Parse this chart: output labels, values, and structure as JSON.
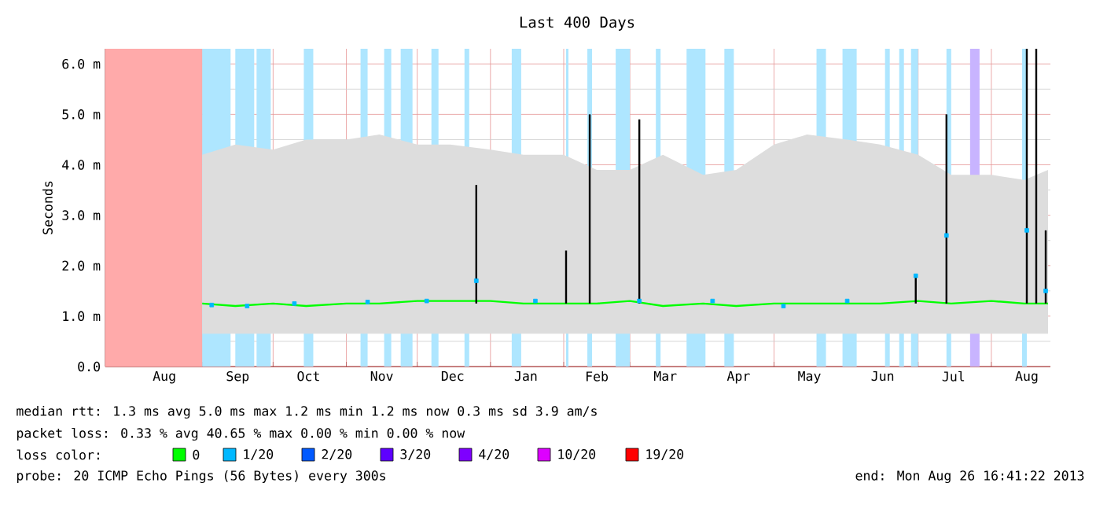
{
  "chart_data": {
    "type": "line",
    "title": "Last 400 Days",
    "ylabel": "Seconds",
    "xlim": [
      "2012-07-22",
      "2013-08-26"
    ],
    "xticks": [
      {
        "value": "2012-08-01",
        "label": null
      },
      {
        "value": "2012-08-16",
        "label": "Aug"
      },
      {
        "value": "2012-09-01",
        "label": null
      },
      {
        "value": "2012-09-16",
        "label": "Sep"
      },
      {
        "value": "2012-10-01",
        "label": null
      },
      {
        "value": "2012-10-16",
        "label": "Oct"
      },
      {
        "value": "2012-11-01",
        "label": null
      },
      {
        "value": "2012-11-16",
        "label": "Nov"
      },
      {
        "value": "2012-12-01",
        "label": null
      },
      {
        "value": "2012-12-16",
        "label": "Dec"
      },
      {
        "value": "2013-01-01",
        "label": null
      },
      {
        "value": "2013-01-16",
        "label": "Jan"
      },
      {
        "value": "2013-02-01",
        "label": null
      },
      {
        "value": "2013-02-15",
        "label": "Feb"
      },
      {
        "value": "2013-03-01",
        "label": null
      },
      {
        "value": "2013-03-16",
        "label": "Mar"
      },
      {
        "value": "2013-04-01",
        "label": null
      },
      {
        "value": "2013-04-16",
        "label": "Apr"
      },
      {
        "value": "2013-05-01",
        "label": null
      },
      {
        "value": "2013-05-16",
        "label": "May"
      },
      {
        "value": "2013-06-01",
        "label": null
      },
      {
        "value": "2013-06-16",
        "label": "Jun"
      },
      {
        "value": "2013-07-01",
        "label": null
      },
      {
        "value": "2013-07-16",
        "label": "Jul"
      },
      {
        "value": "2013-08-01",
        "label": null
      },
      {
        "value": "2013-08-16",
        "label": "Aug"
      }
    ],
    "ylim": [
      0,
      6.3
    ],
    "yticks": [
      {
        "value": 0,
        "label": "0.0"
      },
      {
        "value": 0.5,
        "label": null
      },
      {
        "value": 1,
        "label": "1.0 m"
      },
      {
        "value": 1.5,
        "label": null
      },
      {
        "value": 2,
        "label": "2.0 m"
      },
      {
        "value": 2.5,
        "label": null
      },
      {
        "value": 3,
        "label": "3.0 m"
      },
      {
        "value": 3.5,
        "label": null
      },
      {
        "value": 4,
        "label": "4.0 m"
      },
      {
        "value": 4.5,
        "label": null
      },
      {
        "value": 5,
        "label": "5.0 m"
      },
      {
        "value": 5.5,
        "label": null
      },
      {
        "value": 6,
        "label": "6.0 m"
      }
    ],
    "grid": true,
    "legend": "bottom",
    "legend_title": "loss color:",
    "bands": [
      {
        "axis": "x",
        "from": "2012-07-22",
        "to": "2012-09-01",
        "color": "#ffaaaa"
      },
      {
        "axis": "x",
        "from": "2012-09-01",
        "to": "2012-09-13",
        "color": "#aee6ff"
      },
      {
        "axis": "x",
        "from": "2012-09-15",
        "to": "2012-09-23",
        "color": "#aee6ff"
      },
      {
        "axis": "x",
        "from": "2012-09-24",
        "to": "2012-09-30",
        "color": "#aee6ff"
      },
      {
        "axis": "x",
        "from": "2012-10-14",
        "to": "2012-10-18",
        "color": "#aee6ff"
      },
      {
        "axis": "x",
        "from": "2012-11-07",
        "to": "2012-11-10",
        "color": "#aee6ff"
      },
      {
        "axis": "x",
        "from": "2012-11-17",
        "to": "2012-11-20",
        "color": "#aee6ff"
      },
      {
        "axis": "x",
        "from": "2012-11-24",
        "to": "2012-11-29",
        "color": "#aee6ff"
      },
      {
        "axis": "x",
        "from": "2012-12-07",
        "to": "2012-12-10",
        "color": "#aee6ff"
      },
      {
        "axis": "x",
        "from": "2012-12-21",
        "to": "2012-12-23",
        "color": "#aee6ff"
      },
      {
        "axis": "x",
        "from": "2013-01-10",
        "to": "2013-01-14",
        "color": "#aee6ff"
      },
      {
        "axis": "x",
        "from": "2013-02-02",
        "to": "2013-02-03",
        "color": "#aee6ff"
      },
      {
        "axis": "x",
        "from": "2013-02-11",
        "to": "2013-02-13",
        "color": "#aee6ff"
      },
      {
        "axis": "x",
        "from": "2013-02-23",
        "to": "2013-03-01",
        "color": "#aee6ff"
      },
      {
        "axis": "x",
        "from": "2013-03-12",
        "to": "2013-03-14",
        "color": "#aee6ff"
      },
      {
        "axis": "x",
        "from": "2013-03-25",
        "to": "2013-04-02",
        "color": "#aee6ff"
      },
      {
        "axis": "x",
        "from": "2013-04-10",
        "to": "2013-04-14",
        "color": "#aee6ff"
      },
      {
        "axis": "x",
        "from": "2013-05-19",
        "to": "2013-05-23",
        "color": "#aee6ff"
      },
      {
        "axis": "x",
        "from": "2013-05-30",
        "to": "2013-06-05",
        "color": "#aee6ff"
      },
      {
        "axis": "x",
        "from": "2013-06-17",
        "to": "2013-06-19",
        "color": "#aee6ff"
      },
      {
        "axis": "x",
        "from": "2013-06-23",
        "to": "2013-06-25",
        "color": "#aee6ff"
      },
      {
        "axis": "x",
        "from": "2013-06-28",
        "to": "2013-07-01",
        "color": "#aee6ff"
      },
      {
        "axis": "x",
        "from": "2013-07-13",
        "to": "2013-07-15",
        "color": "#aee6ff"
      },
      {
        "axis": "x",
        "from": "2013-07-23",
        "to": "2013-07-27",
        "color": "#c8b4ff"
      },
      {
        "axis": "x",
        "from": "2013-08-14",
        "to": "2013-08-16",
        "color": "#aee6ff"
      }
    ],
    "series": [
      {
        "name": "0",
        "color": "#00ff00",
        "x": [
          "2012-09-01",
          "2012-09-15",
          "2012-10-01",
          "2012-10-15",
          "2012-11-01",
          "2012-11-15",
          "2012-12-01",
          "2012-12-15",
          "2013-01-01",
          "2013-01-15",
          "2013-02-01",
          "2013-02-15",
          "2013-03-01",
          "2013-03-15",
          "2013-04-01",
          "2013-04-15",
          "2013-05-01",
          "2013-05-15",
          "2013-06-01",
          "2013-06-15",
          "2013-07-01",
          "2013-07-15",
          "2013-08-01",
          "2013-08-15",
          "2013-08-25"
        ],
        "values": [
          1.25,
          1.2,
          1.25,
          1.2,
          1.25,
          1.25,
          1.3,
          1.3,
          1.3,
          1.25,
          1.25,
          1.25,
          1.3,
          1.2,
          1.25,
          1.2,
          1.25,
          1.25,
          1.25,
          1.25,
          1.3,
          1.25,
          1.3,
          1.25,
          1.25
        ],
        "lower": [
          0.65,
          0.65,
          0.65,
          0.65,
          0.65,
          0.65,
          0.65,
          0.65,
          0.65,
          0.65,
          0.65,
          0.65,
          0.65,
          0.65,
          0.65,
          0.65,
          0.65,
          0.65,
          0.65,
          0.65,
          0.65,
          0.65,
          0.65,
          0.65,
          0.65
        ],
        "upper": [
          4.2,
          4.4,
          4.3,
          4.5,
          4.5,
          4.6,
          4.4,
          4.4,
          4.3,
          4.2,
          4.2,
          3.9,
          3.9,
          4.2,
          3.8,
          3.9,
          4.4,
          4.6,
          4.5,
          4.4,
          4.2,
          3.8,
          3.8,
          3.7,
          3.9
        ]
      },
      {
        "name": "1/20",
        "type": "scatter",
        "marker": "square",
        "color": "#00b8ff",
        "x": [
          "2012-09-05",
          "2012-09-20",
          "2012-10-10",
          "2012-11-10",
          "2012-12-05",
          "2012-12-26",
          "2013-01-20",
          "2013-03-05",
          "2013-04-05",
          "2013-05-05",
          "2013-06-01",
          "2013-06-30",
          "2013-07-13",
          "2013-08-16",
          "2013-08-24"
        ],
        "values": [
          1.22,
          1.2,
          1.25,
          1.28,
          1.3,
          1.7,
          1.3,
          1.3,
          1.3,
          1.2,
          1.3,
          1.8,
          2.6,
          2.7,
          1.5
        ]
      },
      {
        "name": "2/20",
        "color": "#0059ff"
      },
      {
        "name": "3/20",
        "color": "#5e00ff"
      },
      {
        "name": "4/20",
        "color": "#7e00ff"
      },
      {
        "name": "10/20",
        "color": "#dd00ff"
      },
      {
        "name": "19/20",
        "color": "#ff0000"
      },
      {
        "color": "#000000",
        "x": [
          "2012-12-26",
          "2012-12-26"
        ],
        "values": [
          1.25,
          3.6
        ]
      },
      {
        "color": "#000000",
        "x": [
          "2013-02-02",
          "2013-02-02"
        ],
        "values": [
          1.25,
          2.3
        ]
      },
      {
        "color": "#000000",
        "x": [
          "2013-02-12",
          "2013-02-12"
        ],
        "values": [
          1.25,
          5.0
        ]
      },
      {
        "color": "#000000",
        "x": [
          "2013-03-05",
          "2013-03-05"
        ],
        "values": [
          1.25,
          4.9
        ]
      },
      {
        "color": "#000000",
        "x": [
          "2013-06-30",
          "2013-06-30"
        ],
        "values": [
          1.25,
          1.8
        ]
      },
      {
        "color": "#000000",
        "x": [
          "2013-07-13",
          "2013-07-13"
        ],
        "values": [
          1.25,
          5.0
        ]
      },
      {
        "color": "#000000",
        "x": [
          "2013-08-16",
          "2013-08-16"
        ],
        "values": [
          1.25,
          6.3
        ]
      },
      {
        "color": "#000000",
        "x": [
          "2013-08-20",
          "2013-08-20"
        ],
        "values": [
          1.25,
          6.3
        ]
      },
      {
        "color": "#000000",
        "x": [
          "2013-08-24",
          "2013-08-24"
        ],
        "values": [
          1.25,
          2.7
        ]
      }
    ],
    "annotations": [
      "median rtt:  1.3 ms avg  5.0 ms max  1.2 ms min  1.2 ms now  0.3 ms sd  3.9   am/s",
      "packet loss: 0.33 % avg  40.65 % max  0.00 % min  0.00 % now",
      "probe:       20 ICMP Echo Pings (56 Bytes) every 300s",
      "end: Mon Aug 26 16:41:22 2013"
    ]
  }
}
